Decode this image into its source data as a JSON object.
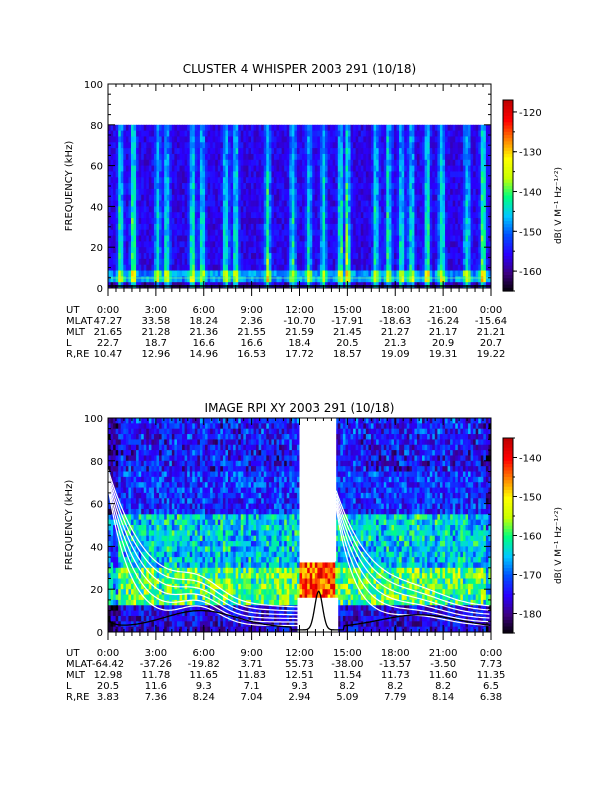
{
  "panels": [
    {
      "title": "CLUSTER 4 WHISPER 2003 291 (10/18)",
      "ylabel": "FREQUENCY (kHz)",
      "yticks": [
        "0",
        "20",
        "40",
        "60",
        "80",
        "100"
      ],
      "cbar_label": "dB( V M⁻¹ Hz⁻¹ᐟ²)",
      "cbar_ticks": [
        "-120",
        "-130",
        "-140",
        "-150",
        "-160"
      ],
      "eph_rows": [
        {
          "label": "UT",
          "vals": [
            "0:00",
            "3:00",
            "6:00",
            "9:00",
            "12:00",
            "15:00",
            "18:00",
            "21:00",
            "0:00"
          ]
        },
        {
          "label": "MLAT",
          "vals": [
            "47.27",
            "33.58",
            "18.24",
            "2.36",
            "-10.70",
            "-17.91",
            "-18.63",
            "-16.24",
            "-15.64"
          ]
        },
        {
          "label": "MLT",
          "vals": [
            "21.65",
            "21.28",
            "21.36",
            "21.55",
            "21.59",
            "21.45",
            "21.27",
            "21.17",
            "21.21"
          ]
        },
        {
          "label": "L",
          "vals": [
            "22.7",
            "18.7",
            "16.6",
            "16.6",
            "18.4",
            "20.5",
            "21.3",
            "20.9",
            "20.7"
          ]
        },
        {
          "label": "R,RE",
          "vals": [
            "10.47",
            "12.96",
            "14.96",
            "16.53",
            "17.72",
            "18.57",
            "19.09",
            "19.31",
            "19.22"
          ]
        }
      ]
    },
    {
      "title": "IMAGE RPI XY 2003 291 (10/18)",
      "ylabel": "FREQUENCY (kHz)",
      "yticks": [
        "0",
        "20",
        "40",
        "60",
        "80",
        "100"
      ],
      "cbar_label": "dB( V M⁻¹ Hz⁻¹ᐟ²)",
      "cbar_ticks": [
        "-140",
        "-150",
        "-160",
        "-170",
        "-180"
      ],
      "eph_rows": [
        {
          "label": "UT",
          "vals": [
            "0:00",
            "3:00",
            "6:00",
            "9:00",
            "12:00",
            "15:00",
            "18:00",
            "21:00",
            "0:00"
          ]
        },
        {
          "label": "MLAT",
          "vals": [
            "-64.42",
            "-37.26",
            "-19.82",
            "3.71",
            "55.73",
            "-38.00",
            "-13.57",
            "-3.50",
            "7.73"
          ]
        },
        {
          "label": "MLT",
          "vals": [
            "12.98",
            "11.78",
            "11.65",
            "11.83",
            "12.51",
            "11.54",
            "11.73",
            "11.60",
            "11.35"
          ]
        },
        {
          "label": "L",
          "vals": [
            "20.5",
            "11.6",
            "9.3",
            "7.1",
            "9.3",
            "8.2",
            "8.2",
            "8.2",
            "6.5"
          ]
        },
        {
          "label": "R,RE",
          "vals": [
            "3.83",
            "7.36",
            "8.24",
            "7.04",
            "2.94",
            "5.09",
            "7.79",
            "8.14",
            "6.38"
          ]
        }
      ]
    }
  ],
  "chart_data": [
    {
      "type": "heatmap",
      "title": "CLUSTER 4 WHISPER 2003 291 (10/18)",
      "ylabel": "FREQUENCY (kHz)",
      "x_range_hours": [
        0,
        24
      ],
      "ylim": [
        0,
        100
      ],
      "data_freq_max_khz": 80,
      "colorbar": {
        "label": "dB( V M⁻¹ Hz⁻¹ᐟ²)",
        "range": [
          -165,
          -117
        ],
        "ticks": [
          -120,
          -130,
          -140,
          -150,
          -160
        ]
      },
      "colormap": [
        "#000000",
        "#3c0080",
        "#2a00ff",
        "#0050ff",
        "#00c8ff",
        "#00ff80",
        "#c8ff00",
        "#ffff00",
        "#ff8000",
        "#ff0000",
        "#c00000"
      ],
      "bright_times_hours": [
        0.8,
        1.6,
        3.1,
        3.7,
        5.3,
        5.9,
        7.4,
        8.0,
        10.0,
        11.6,
        12.6,
        13.5,
        14.6,
        15.0,
        16.8,
        17.6,
        18.4,
        19.0,
        20.0,
        20.9,
        22.5,
        23.5
      ],
      "background_level_db": -156
    },
    {
      "type": "heatmap",
      "title": "IMAGE RPI XY 2003 291 (10/18)",
      "ylabel": "FREQUENCY (kHz)",
      "x_range_hours": [
        0,
        24
      ],
      "ylim": [
        0,
        100
      ],
      "data_gap_hours": [
        12.0,
        14.3
      ],
      "colorbar": {
        "label": "dB( V M⁻¹ Hz⁻¹ᐟ²)",
        "range": [
          -185,
          -135
        ],
        "ticks": [
          -140,
          -150,
          -160,
          -170,
          -180
        ]
      },
      "colormap": [
        "#000000",
        "#3c0080",
        "#2a00ff",
        "#0050ff",
        "#00c8ff",
        "#00ff80",
        "#c8ff00",
        "#ffff00",
        "#ff8000",
        "#ff0000",
        "#c00000"
      ],
      "plasma_freq_curves_count": 6,
      "black_curve_peak_hour": 13.2,
      "black_curve_peak_khz": 18
    }
  ]
}
